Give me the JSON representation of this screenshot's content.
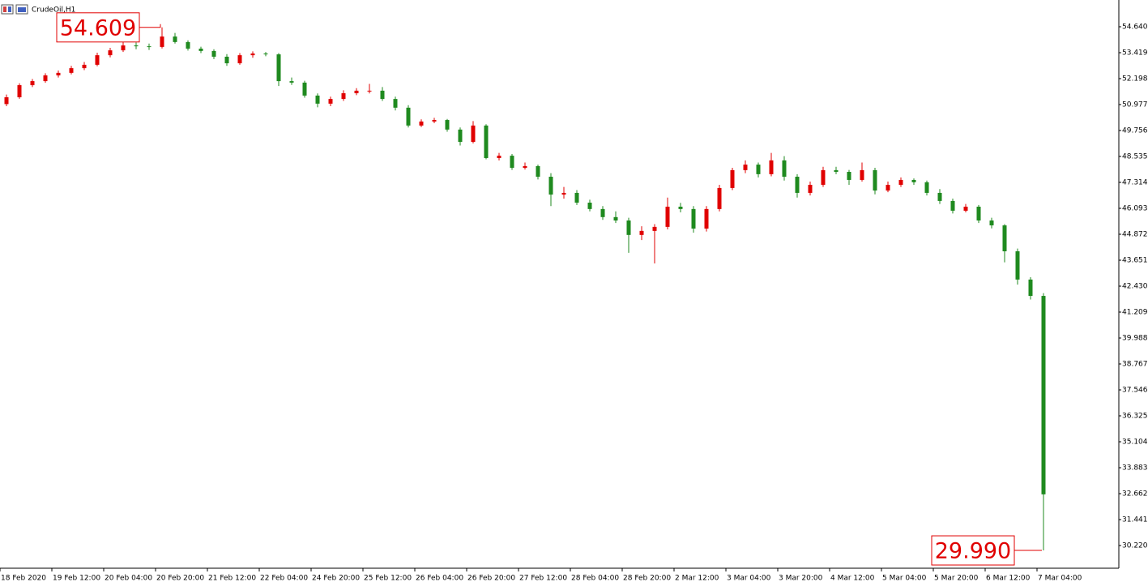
{
  "chart_data": {
    "type": "candlestick",
    "title": "CrudeOil,H1",
    "up_color": "#e00000",
    "down_color": "#1f8a1f",
    "open": [
      51.0,
      51.32,
      51.89,
      52.08,
      52.35,
      52.47,
      52.69,
      52.85,
      53.3,
      53.53,
      53.76,
      53.72,
      53.69,
      54.18,
      53.92,
      53.61,
      53.5,
      53.23,
      52.92,
      53.3,
      53.38,
      53.34,
      52.08,
      52.01,
      51.4,
      51.02,
      51.24,
      51.51,
      51.63,
      51.63,
      51.24,
      50.83,
      49.99,
      50.18,
      50.25,
      49.8,
      49.22,
      49.99,
      48.46,
      48.57,
      48.0,
      48.08,
      47.58,
      46.74,
      46.82,
      46.36,
      46.06,
      45.68,
      45.52,
      44.84,
      45.03,
      45.22,
      46.17,
      46.06,
      45.14,
      46.06,
      47.05,
      47.89,
      48.15,
      47.7,
      48.35,
      47.58,
      46.82,
      47.2,
      47.89,
      47.81,
      47.43,
      47.89,
      46.93,
      47.2,
      47.43,
      47.32,
      46.82,
      46.44,
      45.98,
      46.17,
      45.52,
      45.29,
      44.07,
      42.74,
      41.97
    ],
    "high": [
      51.45,
      51.98,
      52.18,
      52.45,
      52.58,
      52.8,
      52.98,
      53.42,
      53.65,
      53.92,
      53.9,
      53.85,
      54.609,
      54.35,
      54.0,
      53.7,
      53.58,
      53.35,
      53.4,
      53.48,
      53.45,
      53.4,
      52.25,
      52.1,
      51.5,
      51.35,
      51.65,
      51.75,
      51.95,
      51.8,
      51.35,
      50.95,
      50.28,
      50.35,
      50.3,
      49.9,
      50.2,
      50.05,
      48.7,
      48.65,
      48.25,
      48.15,
      47.75,
      47.1,
      46.95,
      46.5,
      46.2,
      45.95,
      45.65,
      45.25,
      45.35,
      46.6,
      46.35,
      46.2,
      46.2,
      47.2,
      48.0,
      48.35,
      48.25,
      48.7,
      48.55,
      47.7,
      47.35,
      48.05,
      48.05,
      47.9,
      48.25,
      48.0,
      47.35,
      47.55,
      47.5,
      47.4,
      47.0,
      46.55,
      46.3,
      46.25,
      45.65,
      45.35,
      44.2,
      42.85,
      42.1
    ],
    "low": [
      50.9,
      51.25,
      51.8,
      52.0,
      52.25,
      52.4,
      52.6,
      52.78,
      53.2,
      53.45,
      53.58,
      53.55,
      53.62,
      53.85,
      53.52,
      53.4,
      53.12,
      52.8,
      52.85,
      53.18,
      53.25,
      51.85,
      51.9,
      51.3,
      50.85,
      50.9,
      51.15,
      51.42,
      51.5,
      51.15,
      50.7,
      49.9,
      49.92,
      50.1,
      49.7,
      49.05,
      49.15,
      48.4,
      48.35,
      47.9,
      47.92,
      47.45,
      46.2,
      46.55,
      46.25,
      45.95,
      45.55,
      45.4,
      44.0,
      44.6,
      43.5,
      45.1,
      45.9,
      44.95,
      45.0,
      45.95,
      46.95,
      47.75,
      47.55,
      47.6,
      47.4,
      46.6,
      46.7,
      47.1,
      47.7,
      47.2,
      47.35,
      46.75,
      46.85,
      47.1,
      47.2,
      46.7,
      46.3,
      45.85,
      45.9,
      45.4,
      45.15,
      43.55,
      42.5,
      41.8,
      29.99
    ],
    "close": [
      51.32,
      51.89,
      52.08,
      52.35,
      52.47,
      52.69,
      52.85,
      53.3,
      53.53,
      53.76,
      53.72,
      53.69,
      54.18,
      53.92,
      53.61,
      53.5,
      53.23,
      52.92,
      53.3,
      53.38,
      53.34,
      52.08,
      52.01,
      51.4,
      51.02,
      51.24,
      51.51,
      51.63,
      51.63,
      51.24,
      50.83,
      49.99,
      50.18,
      50.25,
      49.8,
      49.22,
      49.99,
      48.46,
      48.57,
      48.0,
      48.08,
      47.58,
      46.74,
      46.82,
      46.36,
      46.06,
      45.68,
      45.52,
      44.84,
      45.03,
      45.22,
      46.17,
      46.06,
      45.14,
      46.06,
      47.05,
      47.89,
      48.15,
      47.7,
      48.35,
      47.58,
      46.82,
      47.2,
      47.89,
      47.81,
      47.43,
      47.89,
      46.93,
      47.2,
      47.43,
      47.32,
      46.82,
      46.44,
      45.98,
      46.17,
      45.52,
      45.29,
      44.07,
      42.74,
      41.97,
      32.63
    ],
    "xlim": [
      0,
      86.25
    ],
    "xticks": [
      {
        "value": 0,
        "label": "18 Feb 2020"
      },
      {
        "value": 4,
        "label": "19 Feb 12:00"
      },
      {
        "value": 8,
        "label": "20 Feb 04:00"
      },
      {
        "value": 12,
        "label": "20 Feb 20:00"
      },
      {
        "value": 16,
        "label": "21 Feb 12:00"
      },
      {
        "value": 20,
        "label": "22 Feb 04:00"
      },
      {
        "value": 24,
        "label": "24 Feb 20:00"
      },
      {
        "value": 28,
        "label": "25 Feb 12:00"
      },
      {
        "value": 32,
        "label": "26 Feb 04:00"
      },
      {
        "value": 36,
        "label": "26 Feb 20:00"
      },
      {
        "value": 40,
        "label": "27 Feb 12:00"
      },
      {
        "value": 44,
        "label": "28 Feb 04:00"
      },
      {
        "value": 48,
        "label": "28 Feb 20:00"
      },
      {
        "value": 52,
        "label": "2 Mar 12:00"
      },
      {
        "value": 56,
        "label": "3 Mar 04:00"
      },
      {
        "value": 60,
        "label": "3 Mar 20:00"
      },
      {
        "value": 64,
        "label": "4 Mar 12:00"
      },
      {
        "value": 68,
        "label": "5 Mar 04:00"
      },
      {
        "value": 72,
        "label": "5 Mar 20:00"
      },
      {
        "value": 76,
        "label": "6 Mar 12:00"
      },
      {
        "value": 80,
        "label": "7 Mar 04:00"
      }
    ],
    "ylim": [
      29.19,
      55.899
    ],
    "yticks": [
      {
        "value": 54.64,
        "label": "54.640"
      },
      53.419,
      52.198,
      50.977,
      49.756,
      48.535,
      47.314,
      46.093,
      44.872,
      43.651,
      {
        "value": 42.43,
        "label": "42.430"
      },
      41.209,
      39.988,
      38.767,
      37.546,
      36.325,
      35.104,
      33.883,
      32.662,
      31.441,
      {
        "value": 30.22,
        "label": "30.220"
      }
    ],
    "annotations": [
      54.609,
      {
        "value": 29.99,
        "label": "29.990"
      }
    ],
    "annotation_color": "#e00000"
  }
}
